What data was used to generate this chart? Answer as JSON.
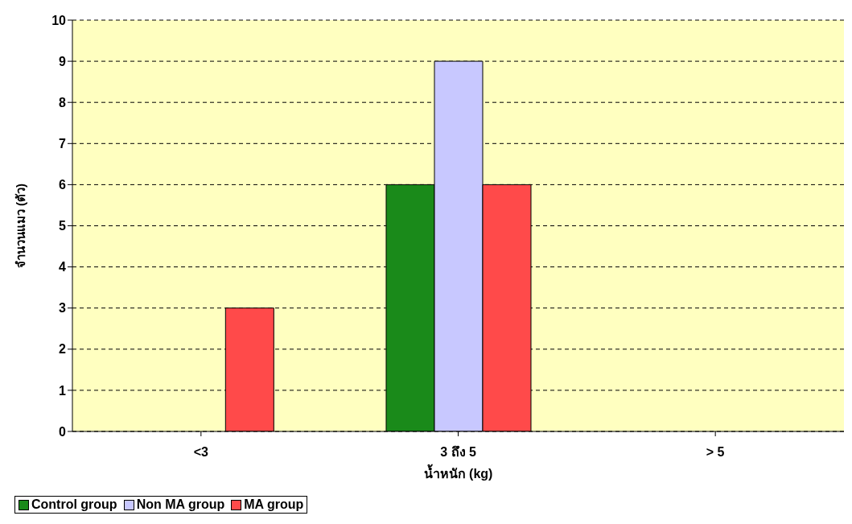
{
  "chart_data": {
    "type": "bar",
    "xlabel": "น้ำหนัก (kg)",
    "ylabel": "จำนวนแมว (ตัว)",
    "categories": [
      "<3",
      "3 ถึง 5",
      "> 5"
    ],
    "series": [
      {
        "name": "Control group",
        "color": "#1a8a1a",
        "values": [
          0,
          6,
          0
        ]
      },
      {
        "name": "Non MA group",
        "color": "#c8c8ff",
        "values": [
          0,
          9,
          0
        ]
      },
      {
        "name": "MA group",
        "color": "#ff4a4a",
        "values": [
          3,
          6,
          0
        ]
      }
    ],
    "ylim": [
      0,
      10
    ],
    "yticks": [
      0,
      1,
      2,
      3,
      4,
      5,
      6,
      7,
      8,
      9,
      10
    ],
    "grid": "y",
    "legend": "bottom"
  }
}
